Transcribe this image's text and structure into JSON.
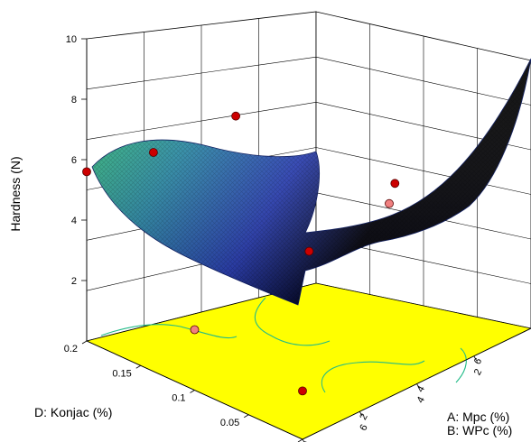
{
  "chart_data": {
    "type": "surface3d",
    "zlabel": "Hardness (N)",
    "xlabel": "D: Konjac (%)",
    "ylabel_lines": [
      "A: Mpc (%)",
      "B: WPc (%)"
    ],
    "z_ticks": [
      "2",
      "4",
      "6",
      "8",
      "10"
    ],
    "zlim": [
      0,
      10
    ],
    "x_ticks": [
      "0",
      "0.05",
      "0.1",
      "0.15",
      "0.2"
    ],
    "xlim": [
      0,
      0.2
    ],
    "a_ticks": [
      "0",
      "2",
      "4",
      "6",
      "8"
    ],
    "b_ticks": [
      "8",
      "6",
      "4",
      "2",
      "0"
    ],
    "alim": [
      0,
      8
    ],
    "floor_color": "#ffff00",
    "surface_colors": {
      "high": "#33cc66",
      "mid": "#2a40b8",
      "low": "#000000"
    },
    "design_points": [
      {
        "konjac": 0.2,
        "mpc": 0,
        "hardness": 5.6,
        "above_surface": true
      },
      {
        "konjac": 0.17,
        "mpc": 1.2,
        "hardness": 6.4,
        "above_surface": true
      },
      {
        "konjac": 0.1,
        "mpc": 0,
        "hardness": 2.0,
        "above_surface": false
      },
      {
        "konjac": 0.0,
        "mpc": 0,
        "hardness": 1.6,
        "above_surface": true
      },
      {
        "konjac": 0.2,
        "mpc": 5.2,
        "hardness": 6.2,
        "above_surface": true
      },
      {
        "konjac": 0.1,
        "mpc": 4.0,
        "hardness": 3.2,
        "above_surface": true
      },
      {
        "konjac": 0.1,
        "mpc": 6.8,
        "hardness": 3.8,
        "above_surface": false
      },
      {
        "konjac": 0.1,
        "mpc": 7.0,
        "hardness": 4.4,
        "above_surface": true
      },
      {
        "konjac": 0.2,
        "mpc": 8.0,
        "hardness": 9.6,
        "above_surface": true
      }
    ]
  }
}
